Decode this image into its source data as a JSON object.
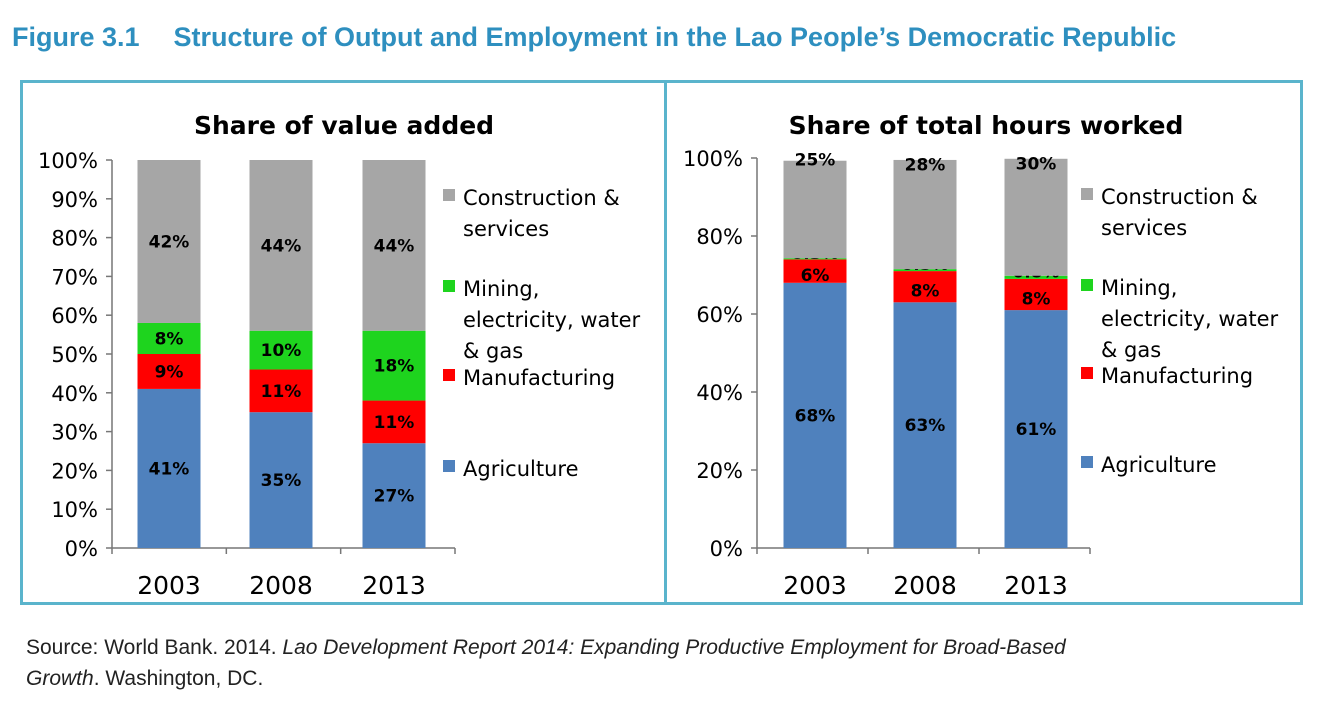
{
  "figure": {
    "number": "Figure 3.1",
    "title": "Structure of Output and Employment in the Lao People’s Democratic Republic"
  },
  "legend_items": [
    {
      "label_lines": [
        "Construction &",
        "services"
      ],
      "color": "#a6a6a6"
    },
    {
      "label_lines": [
        "Mining,",
        "electricity, water",
        "& gas"
      ],
      "color": "#1ed41e"
    },
    {
      "label_lines": [
        "Manufacturing"
      ],
      "color": "#ff0000"
    },
    {
      "label_lines": [
        "Agriculture"
      ],
      "color": "#4f81bd"
    }
  ],
  "chart_data": [
    {
      "type": "bar",
      "stacked": true,
      "title": "Share of value added",
      "categories": [
        "2003",
        "2008",
        "2013"
      ],
      "ylim": [
        0,
        100
      ],
      "yticks": [
        "0%",
        "10%",
        "20%",
        "30%",
        "40%",
        "50%",
        "60%",
        "70%",
        "80%",
        "90%",
        "100%"
      ],
      "series": [
        {
          "name": "Agriculture",
          "values": [
            41,
            35,
            27
          ],
          "labels": [
            "41%",
            "35%",
            "27%"
          ],
          "color": "#4f81bd"
        },
        {
          "name": "Manufacturing",
          "values": [
            9,
            11,
            11
          ],
          "labels": [
            "9%",
            "11%",
            "11%"
          ],
          "color": "#ff0000"
        },
        {
          "name": "Mining, electricity, water & gas",
          "values": [
            8,
            10,
            18
          ],
          "labels": [
            "8%",
            "10%",
            "18%"
          ],
          "color": "#1ed41e"
        },
        {
          "name": "Construction & services",
          "values": [
            42,
            44,
            44
          ],
          "labels": [
            "42%",
            "44%",
            "44%"
          ],
          "color": "#a6a6a6"
        }
      ]
    },
    {
      "type": "bar",
      "stacked": true,
      "title": "Share of total hours worked",
      "categories": [
        "2003",
        "2008",
        "2013"
      ],
      "ylim": [
        0,
        100
      ],
      "yticks": [
        "0%",
        "20%",
        "40%",
        "60%",
        "80%",
        "100%"
      ],
      "series": [
        {
          "name": "Agriculture",
          "values": [
            68,
            63,
            61
          ],
          "labels": [
            "68%",
            "63%",
            "61%"
          ],
          "color": "#4f81bd"
        },
        {
          "name": "Manufacturing",
          "values": [
            6,
            8,
            8
          ],
          "labels": [
            "6%",
            "8%",
            "8%"
          ],
          "color": "#ff0000"
        },
        {
          "name": "Mining, electricity, water & gas",
          "values": [
            0.3,
            0.5,
            0.8
          ],
          "labels": [
            "0.3%",
            "0.5%",
            "0.8%"
          ],
          "color": "#1ed41e"
        },
        {
          "name": "Construction & services",
          "values": [
            25,
            28,
            30
          ],
          "labels": [
            "25%",
            "28%",
            "30%"
          ],
          "color": "#a6a6a6"
        }
      ]
    }
  ],
  "source": {
    "prefix": "Source: World Bank. 2014. ",
    "title_part1": "Lao Development Report 2014: Expanding Productive Employment for Broad-Based",
    "title_part2": "Growth",
    "suffix": ". Washington, DC."
  }
}
